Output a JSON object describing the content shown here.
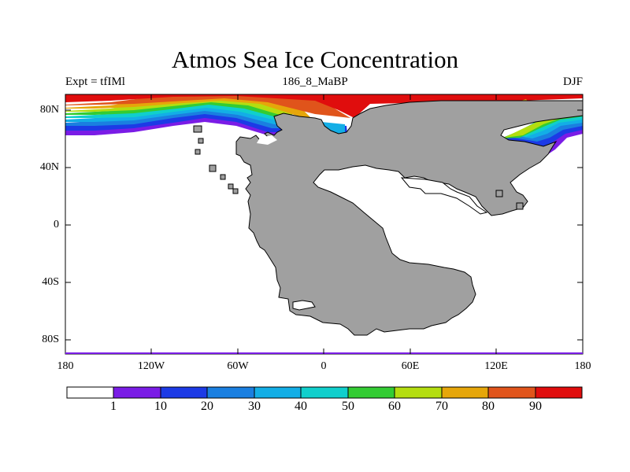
{
  "title": "Atmos Sea Ice Concentration",
  "subtitle_left": "Expt = tfIMl",
  "subtitle_center": "186_8_MaBP",
  "subtitle_right": "DJF",
  "lat_labels": [
    "80N",
    "40N",
    "0",
    "40S",
    "80S"
  ],
  "lon_labels": [
    "180",
    "120W",
    "60W",
    "0",
    "60E",
    "120E",
    "180"
  ],
  "colorbar": {
    "colors": [
      "#ffffff",
      "#7a1ce6",
      "#1c3ae6",
      "#1a7fe0",
      "#13aee6",
      "#10cfcc",
      "#33cc33",
      "#b4dd10",
      "#e6a60a",
      "#e0541b",
      "#e00d0d"
    ],
    "labels": [
      "1",
      "10",
      "20",
      "30",
      "40",
      "50",
      "60",
      "70",
      "80",
      "90"
    ]
  },
  "colors": {
    "land": "#a0a0a0",
    "ocean": "#ffffff"
  }
}
